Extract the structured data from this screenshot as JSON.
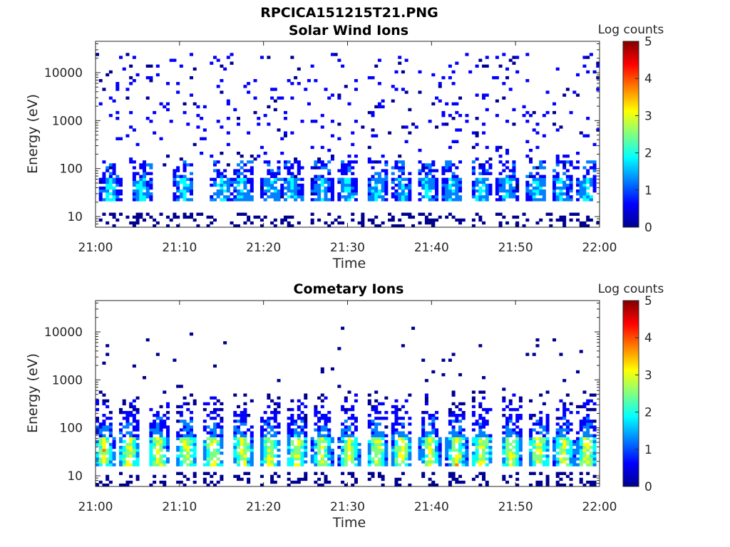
{
  "figure_title": "RPCICA151215T21.PNG",
  "colormap": [
    "#00008f",
    "#0000ff",
    "#0080ff",
    "#00ffff",
    "#80ff80",
    "#ffff00",
    "#ff8000",
    "#ff0000",
    "#800000"
  ],
  "chart_data": [
    {
      "type": "heatmap",
      "title": "Solar Wind Ions",
      "xlabel": "Time",
      "ylabel": "Energy (eV)",
      "x_ticks": [
        "21:00",
        "21:10",
        "21:20",
        "21:30",
        "21:40",
        "21:50",
        "22:00"
      ],
      "y_ticks": [
        "10",
        "100",
        "1000",
        "10000"
      ],
      "y_scale": "log",
      "xlim": [
        "21:00",
        "22:00"
      ],
      "ylim_eV": [
        6,
        45000
      ],
      "colorbar_label": "Log counts",
      "colorbar_ticks": [
        "0",
        "1",
        "2",
        "3",
        "4",
        "5"
      ],
      "clim": [
        0,
        5
      ],
      "pulse_times_min": [
        1.8,
        5.5,
        10.5,
        15.0,
        17.5,
        21.0,
        23.5,
        27.0,
        30.0,
        33.5,
        36.5,
        39.5,
        42.5,
        46.0,
        49.0,
        52.5,
        55.5,
        58.5
      ],
      "core_energy_eV": [
        20,
        60
      ],
      "core_peak_log_counts": 1.8,
      "background_energy_eV": [
        100,
        25000
      ],
      "background_log_counts": 0.2
    },
    {
      "type": "heatmap",
      "title": "Cometary Ions",
      "xlabel": "Time",
      "ylabel": "Energy (eV)",
      "x_ticks": [
        "21:00",
        "21:10",
        "21:20",
        "21:30",
        "21:40",
        "21:50",
        "22:00"
      ],
      "y_ticks": [
        "10",
        "100",
        "1000",
        "10000"
      ],
      "y_scale": "log",
      "xlim": [
        "21:00",
        "22:00"
      ],
      "ylim_eV": [
        6,
        45000
      ],
      "colorbar_label": "Log counts",
      "colorbar_ticks": [
        "0",
        "1",
        "2",
        "3",
        "4",
        "5"
      ],
      "clim": [
        0,
        5
      ],
      "pulse_times_min": [
        1.0,
        4.0,
        7.5,
        10.8,
        14.0,
        17.5,
        20.8,
        24.0,
        27.0,
        30.2,
        33.5,
        36.5,
        39.8,
        43.0,
        46.0,
        49.5,
        52.8,
        55.8,
        58.5
      ],
      "core_energy_eV": [
        15,
        60
      ],
      "core_peak_log_counts": 3.1,
      "tail_energy_eV": [
        60,
        600
      ],
      "tail_log_counts": 1.5
    }
  ]
}
